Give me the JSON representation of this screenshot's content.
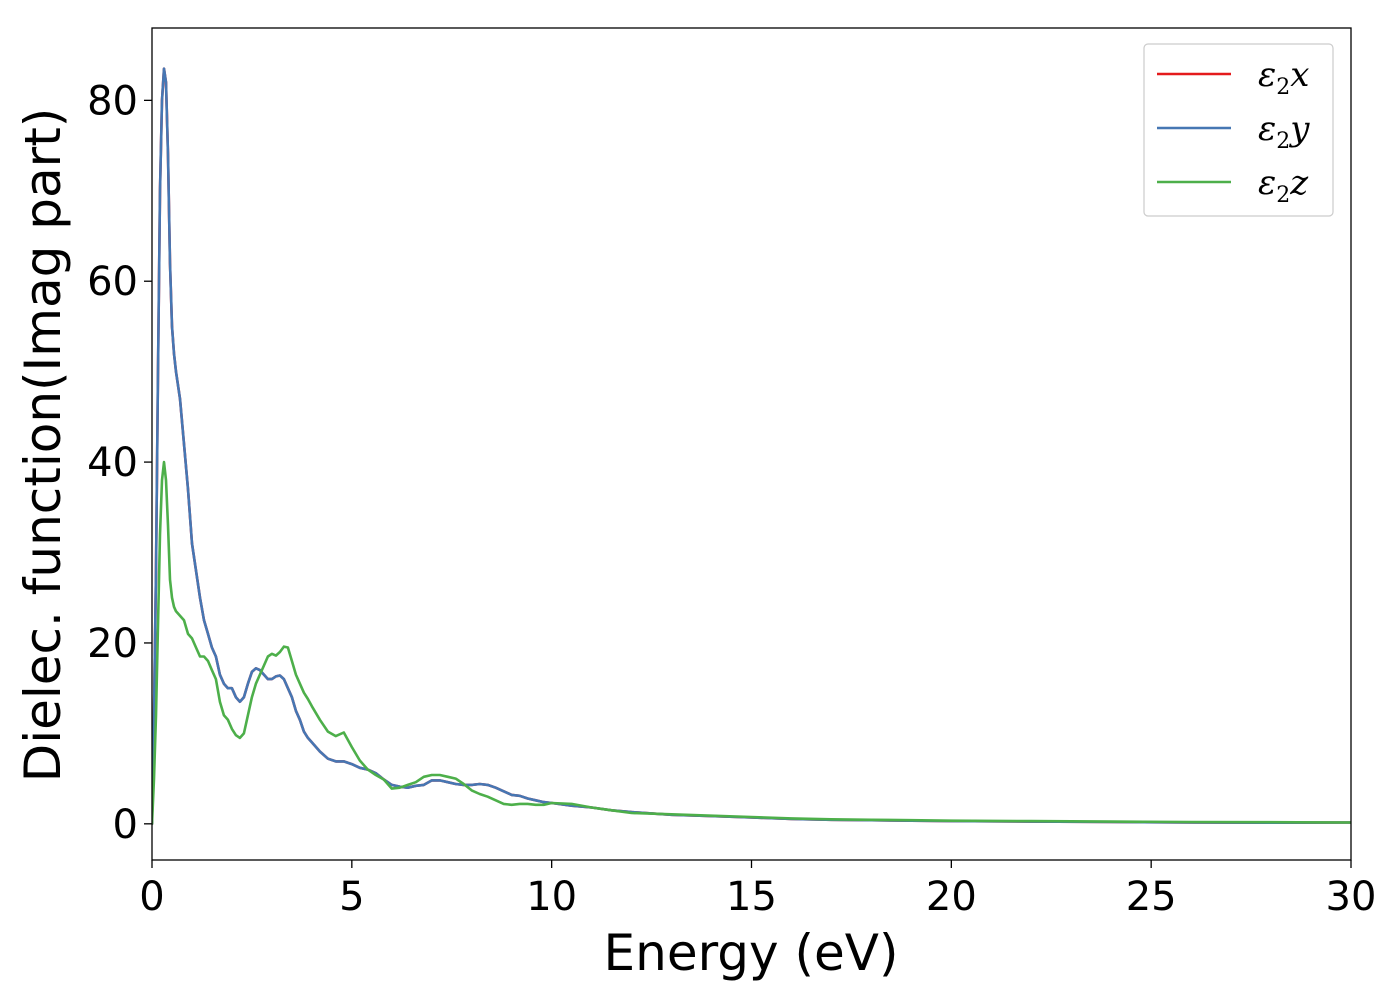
{
  "chart_data": {
    "type": "line",
    "xlabel": "Energy (eV)",
    "ylabel": "Dielec. function(Imag part)",
    "xlim": [
      0,
      30
    ],
    "ylim": [
      -4,
      88
    ],
    "xticks": [
      0,
      5,
      10,
      15,
      20,
      25,
      30
    ],
    "yticks": [
      0,
      20,
      40,
      60,
      80
    ],
    "grid": false,
    "legend_position": "top-right",
    "series": [
      {
        "name": "ε2x",
        "legend_symbol": "ε",
        "legend_sub": "2",
        "legend_var": "x",
        "color": "#e41a1c",
        "x": [
          0,
          0.05,
          0.1,
          0.15,
          0.2,
          0.25,
          0.3,
          0.35,
          0.4,
          0.45,
          0.5,
          0.55,
          0.6,
          0.7,
          0.8,
          0.9,
          1.0,
          1.1,
          1.2,
          1.3,
          1.4,
          1.5,
          1.6,
          1.7,
          1.8,
          1.9,
          2.0,
          2.1,
          2.2,
          2.3,
          2.4,
          2.5,
          2.6,
          2.7,
          2.8,
          2.9,
          3.0,
          3.1,
          3.2,
          3.3,
          3.4,
          3.5,
          3.6,
          3.7,
          3.8,
          3.9,
          4.0,
          4.2,
          4.4,
          4.6,
          4.8,
          5.0,
          5.2,
          5.4,
          5.6,
          5.8,
          6.0,
          6.2,
          6.4,
          6.6,
          6.8,
          7.0,
          7.2,
          7.4,
          7.6,
          7.8,
          8.0,
          8.2,
          8.4,
          8.6,
          8.8,
          9.0,
          9.2,
          9.4,
          9.6,
          9.8,
          10.0,
          10.5,
          11.0,
          11.5,
          12.0,
          13.0,
          14.0,
          15.0,
          16.0,
          17.0,
          18.0,
          19.0,
          20.0,
          22.0,
          24.0,
          26.0,
          28.0,
          30.0
        ],
        "values": [
          0,
          12,
          28,
          50,
          70,
          80,
          83.5,
          82,
          74,
          62,
          55,
          52,
          50,
          47,
          42,
          37,
          31,
          28,
          25,
          22.5,
          21,
          19.5,
          18.5,
          16.5,
          15.5,
          15,
          15,
          14,
          13.5,
          14,
          15.5,
          16.8,
          17.2,
          17,
          16.5,
          16,
          16,
          16.3,
          16.4,
          16,
          15,
          14,
          12.5,
          11.5,
          10.2,
          9.5,
          9,
          8,
          7.2,
          6.9,
          6.9,
          6.6,
          6.2,
          6,
          5.6,
          4.9,
          4.3,
          4.1,
          4.0,
          4.2,
          4.3,
          4.8,
          4.8,
          4.6,
          4.4,
          4.3,
          4.3,
          4.4,
          4.3,
          4.0,
          3.6,
          3.2,
          3.1,
          2.8,
          2.6,
          2.4,
          2.3,
          2.0,
          1.8,
          1.5,
          1.3,
          1.0,
          0.85,
          0.7,
          0.55,
          0.45,
          0.4,
          0.35,
          0.3,
          0.25,
          0.2,
          0.15,
          0.12,
          0.15
        ]
      },
      {
        "name": "ε2y",
        "legend_symbol": "ε",
        "legend_sub": "2",
        "legend_var": "y",
        "color": "#4677b3",
        "x": [
          0,
          0.05,
          0.1,
          0.15,
          0.2,
          0.25,
          0.3,
          0.35,
          0.4,
          0.45,
          0.5,
          0.55,
          0.6,
          0.7,
          0.8,
          0.9,
          1.0,
          1.1,
          1.2,
          1.3,
          1.4,
          1.5,
          1.6,
          1.7,
          1.8,
          1.9,
          2.0,
          2.1,
          2.2,
          2.3,
          2.4,
          2.5,
          2.6,
          2.7,
          2.8,
          2.9,
          3.0,
          3.1,
          3.2,
          3.3,
          3.4,
          3.5,
          3.6,
          3.7,
          3.8,
          3.9,
          4.0,
          4.2,
          4.4,
          4.6,
          4.8,
          5.0,
          5.2,
          5.4,
          5.6,
          5.8,
          6.0,
          6.2,
          6.4,
          6.6,
          6.8,
          7.0,
          7.2,
          7.4,
          7.6,
          7.8,
          8.0,
          8.2,
          8.4,
          8.6,
          8.8,
          9.0,
          9.2,
          9.4,
          9.6,
          9.8,
          10.0,
          10.5,
          11.0,
          11.5,
          12.0,
          13.0,
          14.0,
          15.0,
          16.0,
          17.0,
          18.0,
          19.0,
          20.0,
          22.0,
          24.0,
          26.0,
          28.0,
          30.0
        ],
        "values": [
          0,
          12,
          28,
          50,
          70,
          80,
          83.5,
          82,
          74,
          62,
          55,
          52,
          50,
          47,
          42,
          37,
          31,
          28,
          25,
          22.5,
          21,
          19.5,
          18.5,
          16.5,
          15.5,
          15,
          15,
          14,
          13.5,
          14,
          15.5,
          16.8,
          17.2,
          17,
          16.5,
          16,
          16,
          16.3,
          16.4,
          16,
          15,
          14,
          12.5,
          11.5,
          10.2,
          9.5,
          9,
          8,
          7.2,
          6.9,
          6.9,
          6.6,
          6.2,
          6,
          5.6,
          4.9,
          4.3,
          4.1,
          4.0,
          4.2,
          4.3,
          4.8,
          4.8,
          4.6,
          4.4,
          4.3,
          4.3,
          4.4,
          4.3,
          4.0,
          3.6,
          3.2,
          3.1,
          2.8,
          2.6,
          2.4,
          2.3,
          2.0,
          1.8,
          1.5,
          1.3,
          1.0,
          0.85,
          0.7,
          0.55,
          0.45,
          0.4,
          0.35,
          0.3,
          0.25,
          0.2,
          0.15,
          0.12,
          0.15
        ]
      },
      {
        "name": "ε2z",
        "legend_symbol": "ε",
        "legend_sub": "2",
        "legend_var": "z",
        "color": "#4daf4a",
        "x": [
          0,
          0.05,
          0.1,
          0.15,
          0.2,
          0.25,
          0.3,
          0.35,
          0.4,
          0.45,
          0.5,
          0.55,
          0.6,
          0.7,
          0.8,
          0.9,
          1.0,
          1.1,
          1.2,
          1.3,
          1.4,
          1.5,
          1.6,
          1.7,
          1.8,
          1.9,
          2.0,
          2.1,
          2.2,
          2.3,
          2.4,
          2.5,
          2.6,
          2.7,
          2.8,
          2.9,
          3.0,
          3.1,
          3.2,
          3.3,
          3.4,
          3.5,
          3.6,
          3.7,
          3.8,
          3.9,
          4.0,
          4.2,
          4.4,
          4.6,
          4.8,
          5.0,
          5.2,
          5.4,
          5.6,
          5.8,
          6.0,
          6.2,
          6.4,
          6.6,
          6.8,
          7.0,
          7.2,
          7.4,
          7.6,
          7.8,
          8.0,
          8.2,
          8.4,
          8.6,
          8.8,
          9.0,
          9.2,
          9.4,
          9.6,
          9.8,
          10.0,
          10.5,
          11.0,
          11.5,
          12.0,
          13.0,
          14.0,
          15.0,
          16.0,
          17.0,
          18.0,
          19.0,
          20.0,
          22.0,
          24.0,
          26.0,
          28.0,
          30.0
        ],
        "values": [
          0,
          5,
          12,
          22,
          32,
          38,
          40,
          38,
          33,
          27,
          25,
          24,
          23.5,
          23,
          22.5,
          21,
          20.5,
          19.5,
          18.5,
          18.5,
          18,
          17,
          16,
          13.5,
          12,
          11.5,
          10.5,
          9.8,
          9.5,
          10,
          12,
          14,
          15.5,
          16.5,
          17.5,
          18.5,
          18.8,
          18.6,
          19,
          19.6,
          19.5,
          18,
          16.5,
          15.5,
          14.5,
          13.8,
          13,
          11.5,
          10.2,
          9.7,
          10.1,
          8.5,
          7,
          6,
          5.4,
          4.9,
          3.9,
          4.0,
          4.3,
          4.6,
          5.2,
          5.4,
          5.4,
          5.2,
          5.0,
          4.4,
          3.7,
          3.3,
          3.0,
          2.6,
          2.2,
          2.1,
          2.2,
          2.2,
          2.1,
          2.1,
          2.3,
          2.2,
          1.8,
          1.5,
          1.2,
          1.05,
          0.9,
          0.75,
          0.6,
          0.5,
          0.45,
          0.4,
          0.35,
          0.3,
          0.25,
          0.2,
          0.18,
          0.15
        ]
      }
    ]
  }
}
